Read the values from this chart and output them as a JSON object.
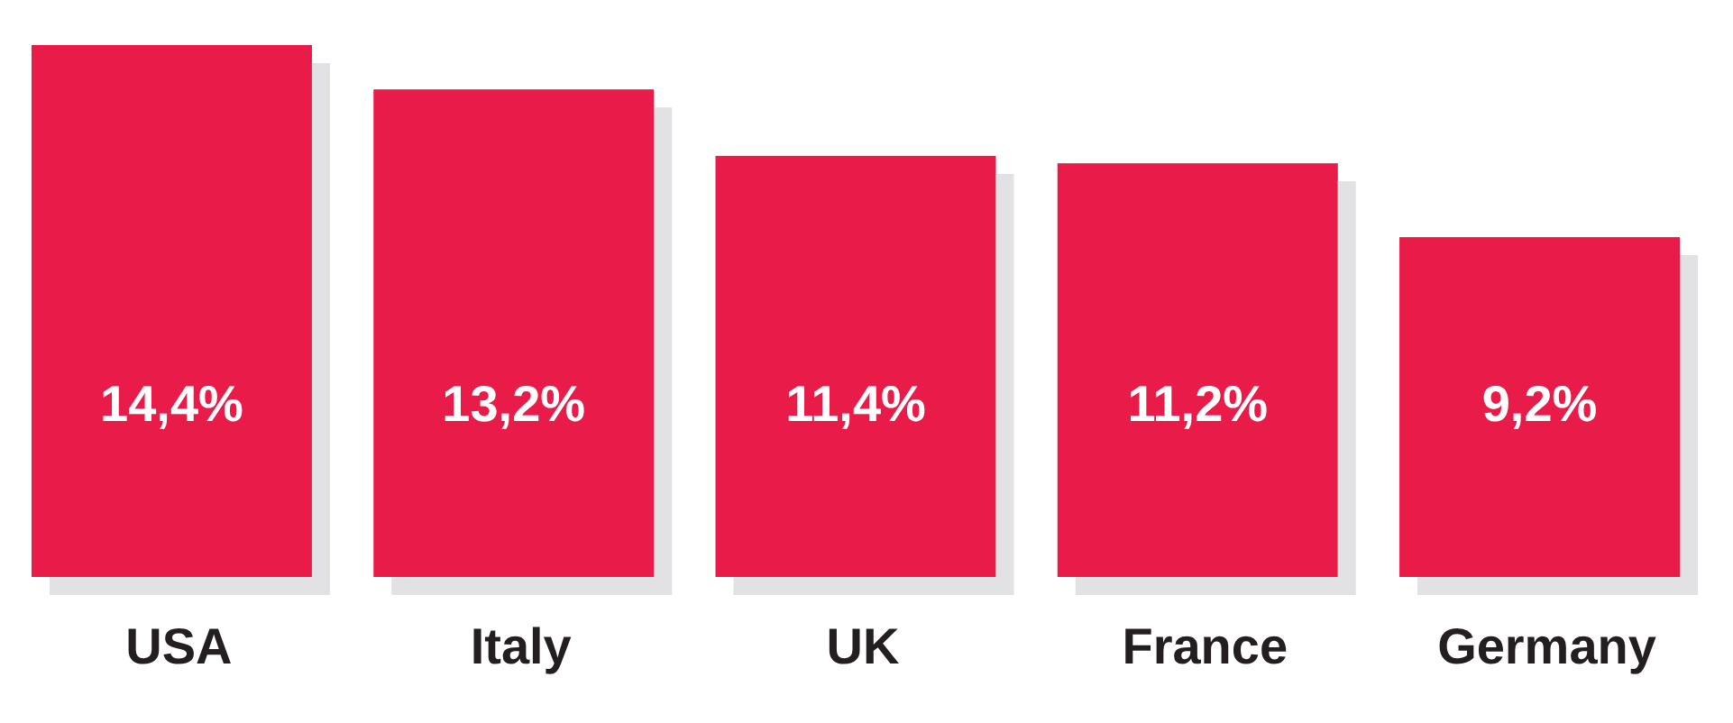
{
  "chart_data": {
    "type": "bar",
    "categories": [
      "USA",
      "Italy",
      "UK",
      "France",
      "Germany"
    ],
    "values": [
      14.4,
      13.2,
      11.4,
      11.2,
      9.2
    ],
    "color": "#e91e4a",
    "value_labels": [
      "14,4%",
      "13,2%",
      "11,4%",
      "11,2%",
      "9,2%"
    ]
  }
}
